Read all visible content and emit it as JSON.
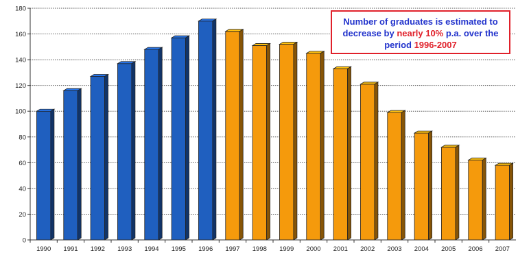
{
  "chart_data": {
    "type": "bar",
    "title": "",
    "xlabel": "",
    "ylabel": "",
    "categories": [
      "1990",
      "1991",
      "1992",
      "1993",
      "1994",
      "1995",
      "1996",
      "1997",
      "1998",
      "1999",
      "2000",
      "2001",
      "2002",
      "2003",
      "2004",
      "2005",
      "2006",
      "2007"
    ],
    "values": [
      100,
      116,
      127,
      137,
      148,
      157,
      170,
      162,
      151,
      152,
      145,
      133,
      121,
      99,
      83,
      72,
      62,
      58
    ],
    "ylim": [
      0,
      180
    ],
    "yticks": [
      0,
      20,
      40,
      60,
      80,
      100,
      120,
      140,
      160,
      180
    ],
    "grid": true,
    "bar_colors": [
      "#1f5fbf",
      "#1f5fbf",
      "#1f5fbf",
      "#1f5fbf",
      "#1f5fbf",
      "#1f5fbf",
      "#1f5fbf",
      "#f59a0c",
      "#f59a0c",
      "#f59a0c",
      "#f59a0c",
      "#f59a0c",
      "#f59a0c",
      "#f59a0c",
      "#f59a0c",
      "#f59a0c",
      "#f59a0c",
      "#f59a0c"
    ],
    "annotation": {
      "part1": "Number of graduates is estimated to decrease by ",
      "part2": "nearly 10%",
      "part3": " p.a. over the period ",
      "part4": "1996-2007"
    }
  }
}
